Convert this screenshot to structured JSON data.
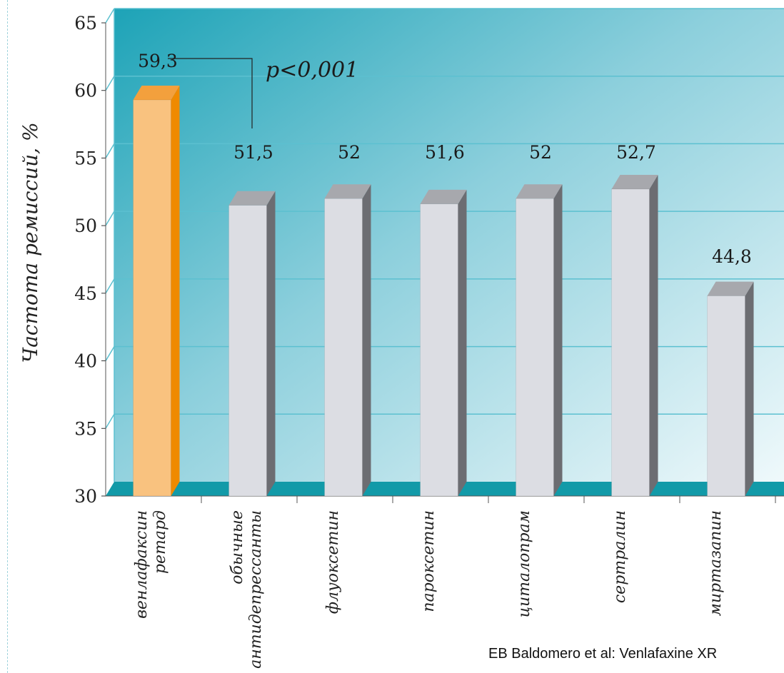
{
  "chart_data": {
    "type": "bar",
    "ylabel": "Частота ремиссий, %",
    "ylim": [
      30,
      65
    ],
    "yticks": [
      "30",
      "35",
      "40",
      "45",
      "50",
      "55",
      "60",
      "65"
    ],
    "grid": true,
    "categories": [
      [
        "венлафаксин",
        "ретард"
      ],
      [
        "обычные",
        "антидепрессанты"
      ],
      [
        "флуоксетин"
      ],
      [
        "пароксетин"
      ],
      [
        "циталопрам"
      ],
      [
        "сертралин"
      ],
      [
        "миртазапин"
      ]
    ],
    "values": [
      59.3,
      51.5,
      52,
      51.6,
      52,
      52.7,
      44.8
    ],
    "value_labels": [
      "59,3",
      "51,5",
      "52",
      "51,6",
      "52",
      "52,7",
      "44,8"
    ],
    "highlight_index": 0,
    "annotation": "p<0,001",
    "colors": {
      "highlight_front": "#f9c27f",
      "highlight_side": "#ef8a00",
      "highlight_top": "#f3a03d",
      "bar_front": "#dcdde3",
      "bar_side": "#6c6d72",
      "bar_top": "#a7a8ad",
      "floor": "#129aa8",
      "wall_dark": "#1ea3b8",
      "wall_light": "#eef8fb",
      "grid": "#5cc0d0"
    }
  },
  "source": "EB Baldomero et al: Venlafaxine XR"
}
